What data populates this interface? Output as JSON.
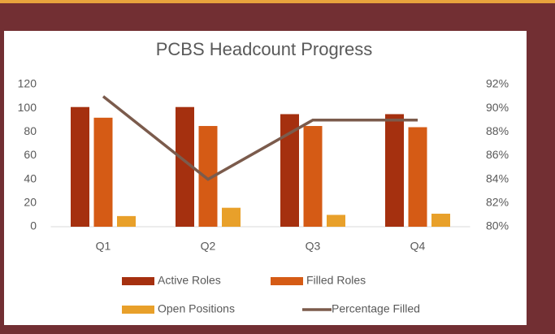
{
  "chart_data": {
    "type": "bar",
    "title": "PCBS Headcount Progress",
    "categories": [
      "Q1",
      "Q2",
      "Q3",
      "Q4"
    ],
    "series": [
      {
        "name": "Active Roles",
        "type": "bar",
        "color": "#a5300f",
        "values": [
          101,
          101,
          95,
          95
        ]
      },
      {
        "name": "Filled Roles",
        "type": "bar",
        "color": "#d55b15",
        "values": [
          92,
          85,
          85,
          84
        ]
      },
      {
        "name": "Open Positions",
        "type": "bar",
        "color": "#e8a02a",
        "values": [
          9,
          16,
          10,
          11
        ]
      },
      {
        "name": "Percentage Filled",
        "type": "line",
        "axis": "y2",
        "color": "#7b5b4c",
        "values": [
          91,
          84,
          89,
          89
        ]
      }
    ],
    "ylim": [
      0,
      120
    ],
    "yticks": [
      0,
      20,
      40,
      60,
      80,
      100,
      120
    ],
    "y2lim": [
      80,
      92
    ],
    "y2ticks": [
      {
        "value": 80,
        "label": "80%"
      },
      {
        "value": 82,
        "label": "82%"
      },
      {
        "value": 84,
        "label": "84%"
      },
      {
        "value": 86,
        "label": "86%"
      },
      {
        "value": 88,
        "label": "88%"
      },
      {
        "value": 90,
        "label": "90%"
      },
      {
        "value": 92,
        "label": "92%"
      }
    ],
    "grid": false,
    "legend": "bottom"
  }
}
